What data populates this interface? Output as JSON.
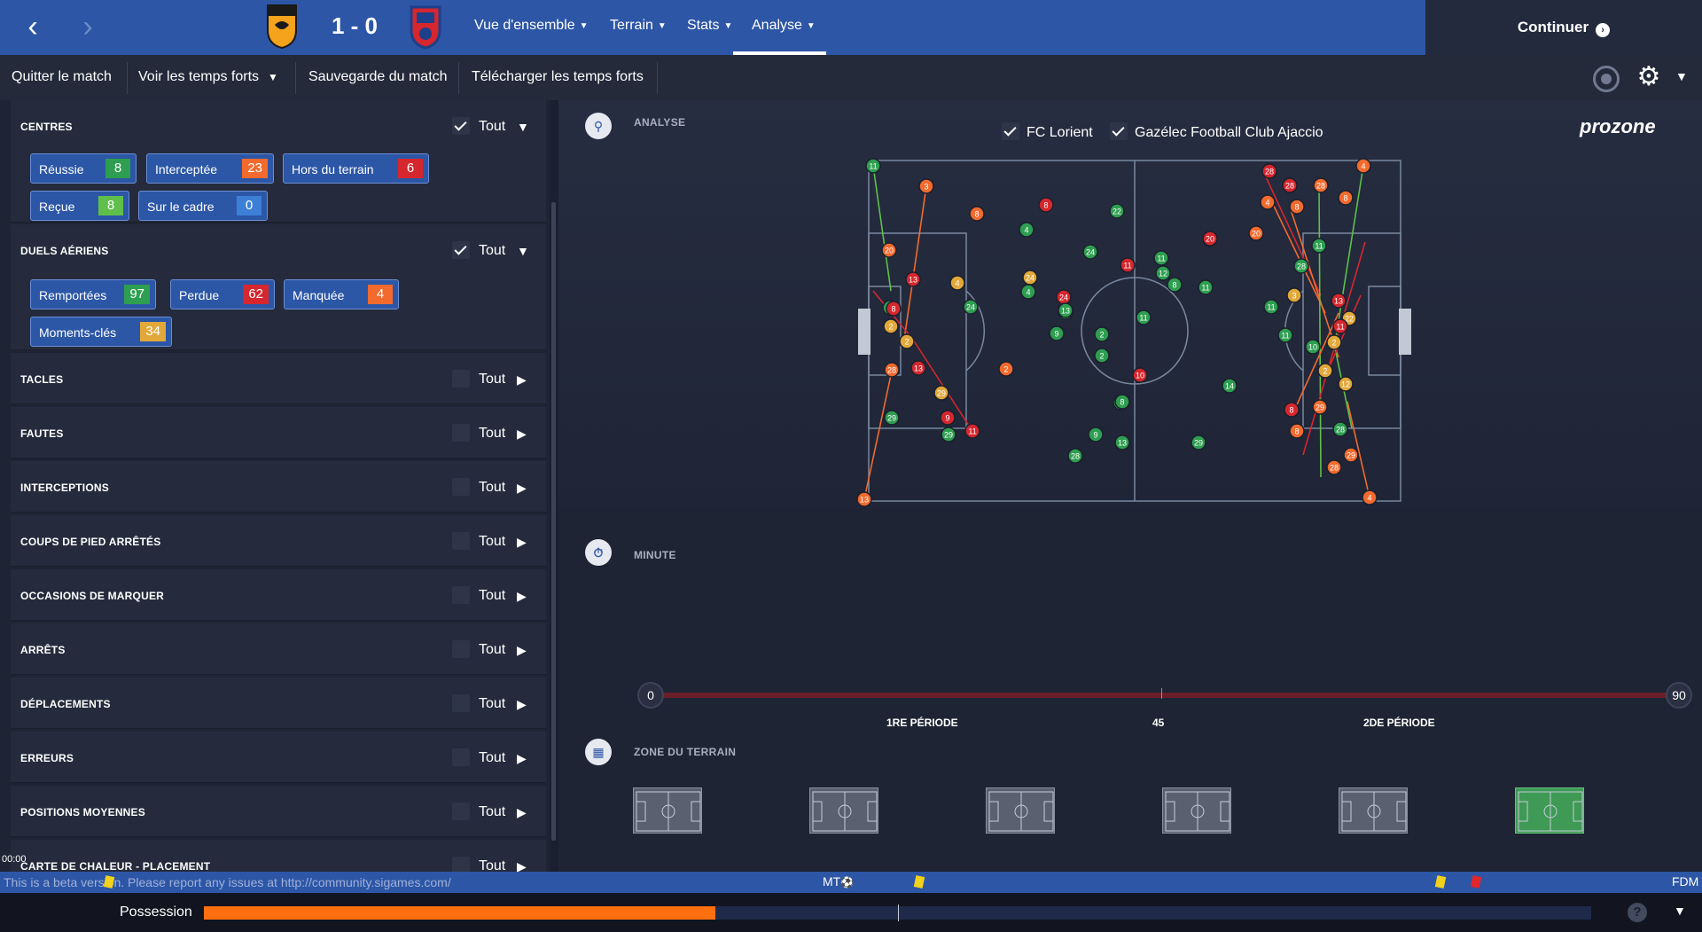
{
  "header": {
    "back_label": "‹",
    "forward_label": "›",
    "score": "1 - 0",
    "home_crest_text": "FC LORIENT",
    "away_crest_text": "GFCA",
    "tabs": [
      {
        "label": "Vue d'ensemble"
      },
      {
        "label": "Terrain"
      },
      {
        "label": "Stats"
      },
      {
        "label": "Analyse"
      }
    ],
    "continue_label": "Continuer"
  },
  "subbar": {
    "quit": "Quitter le match",
    "highlights": "Voir les temps forts",
    "save": "Sauvegarde du match",
    "download": "Télécharger les temps forts"
  },
  "colors": {
    "green": "#2e9e50",
    "orange": "#f26a2e",
    "red": "#d6262e",
    "yellow": "#e2a83a",
    "blue": "#3c7fd6"
  },
  "left_panel": {
    "all_label": "Tout",
    "centres": {
      "title": "CENTRES",
      "chips": [
        {
          "label": "Réussie",
          "value": "8",
          "color": "#2e9e50"
        },
        {
          "label": "Interceptée",
          "value": "23",
          "color": "#f26a2e"
        },
        {
          "label": "Hors du terrain",
          "value": "6",
          "color": "#d6262e"
        },
        {
          "label": "Reçue",
          "value": "8",
          "color": "#5fbf4a"
        },
        {
          "label": "Sur le cadre",
          "value": "0",
          "color": "#3c7fd6"
        }
      ]
    },
    "duels": {
      "title": "DUELS AÉRIENS",
      "chips": [
        {
          "label": "Remportées",
          "value": "97",
          "color": "#2e9e50"
        },
        {
          "label": "Perdue",
          "value": "62",
          "color": "#d6262e"
        },
        {
          "label": "Manquée",
          "value": "4",
          "color": "#f26a2e"
        },
        {
          "label": "Moments-clés",
          "value": "34",
          "color": "#e2a83a"
        }
      ]
    },
    "sections": [
      {
        "title": "TACLES"
      },
      {
        "title": "FAUTES"
      },
      {
        "title": "INTERCEPTIONS"
      },
      {
        "title": "COUPS DE PIED ARRÊTÉS"
      },
      {
        "title": "OCCASIONS DE MARQUER"
      },
      {
        "title": "ARRÊTS"
      },
      {
        "title": "DÉPLACEMENTS"
      },
      {
        "title": "ERREURS"
      },
      {
        "title": "POSITIONS MOYENNES"
      },
      {
        "title": "CARTE DE CHALEUR - PLACEMENT"
      }
    ],
    "timestamp": "00:00"
  },
  "analysis": {
    "section_label": "ANALYSE",
    "teams": [
      "FC Lorient",
      "Gazélec Football Club Ajaccio"
    ],
    "brand": "prozone",
    "markers": [
      {
        "n": "11",
        "c": "g"
      },
      {
        "n": "3",
        "c": "o"
      },
      {
        "n": "8",
        "c": "o"
      },
      {
        "n": "8",
        "c": "r"
      },
      {
        "n": "4",
        "c": "g"
      },
      {
        "n": "22",
        "c": "g"
      },
      {
        "n": "28",
        "c": "r"
      },
      {
        "n": "28",
        "c": "r"
      },
      {
        "n": "4",
        "c": "o"
      },
      {
        "n": "20",
        "c": "o"
      },
      {
        "n": "4",
        "c": "o"
      },
      {
        "n": "8",
        "c": "o"
      },
      {
        "n": "28",
        "c": "o"
      },
      {
        "n": "8",
        "c": "o"
      },
      {
        "n": "11",
        "c": "g"
      },
      {
        "n": "11",
        "c": "g"
      },
      {
        "n": "20",
        "c": "r"
      },
      {
        "n": "13",
        "c": "g"
      },
      {
        "n": "24",
        "c": "g"
      },
      {
        "n": "11",
        "c": "r"
      },
      {
        "n": "11",
        "c": "g"
      },
      {
        "n": "20",
        "c": "o"
      },
      {
        "n": "13",
        "c": "r"
      },
      {
        "n": "4",
        "c": "y"
      },
      {
        "n": "24",
        "c": "y"
      },
      {
        "n": "4",
        "c": "g"
      },
      {
        "n": "12",
        "c": "g"
      },
      {
        "n": "8",
        "c": "g"
      },
      {
        "n": "11",
        "c": "g"
      },
      {
        "n": "24",
        "c": "g"
      },
      {
        "n": "8",
        "c": "r"
      },
      {
        "n": "2",
        "c": "y"
      },
      {
        "n": "2",
        "c": "y"
      },
      {
        "n": "28",
        "c": "o"
      },
      {
        "n": "13",
        "c": "r"
      },
      {
        "n": "29",
        "c": "y"
      },
      {
        "n": "9",
        "c": "r"
      },
      {
        "n": "11",
        "c": "r"
      },
      {
        "n": "29",
        "c": "g"
      },
      {
        "n": "29",
        "c": "g"
      },
      {
        "n": "13",
        "c": "o"
      },
      {
        "n": "2",
        "c": "o"
      },
      {
        "n": "9",
        "c": "g"
      },
      {
        "n": "2",
        "c": "g"
      },
      {
        "n": "13",
        "c": "g"
      },
      {
        "n": "10",
        "c": "r"
      },
      {
        "n": "14",
        "c": "g"
      },
      {
        "n": "29",
        "c": "g"
      },
      {
        "n": "28",
        "c": "g"
      },
      {
        "n": "13",
        "c": "g"
      },
      {
        "n": "29",
        "c": "g"
      },
      {
        "n": "11",
        "c": "g"
      },
      {
        "n": "3",
        "c": "y"
      },
      {
        "n": "11",
        "c": "g"
      },
      {
        "n": "28",
        "c": "g"
      },
      {
        "n": "8",
        "c": "r"
      },
      {
        "n": "8",
        "c": "o"
      },
      {
        "n": "28",
        "c": "o"
      },
      {
        "n": "29",
        "c": "o"
      },
      {
        "n": "4",
        "c": "o"
      },
      {
        "n": "10",
        "c": "g"
      },
      {
        "n": "2",
        "c": "y"
      },
      {
        "n": "12",
        "c": "y"
      },
      {
        "n": "22",
        "c": "y"
      },
      {
        "n": "13",
        "c": "r"
      },
      {
        "n": "11",
        "c": "r"
      },
      {
        "n": "2",
        "c": "y"
      },
      {
        "n": "24",
        "c": "r"
      },
      {
        "n": "2",
        "c": "g"
      },
      {
        "n": "11",
        "c": "g"
      },
      {
        "n": "13",
        "c": "g"
      },
      {
        "n": "8",
        "c": "g"
      },
      {
        "n": "29",
        "c": "o"
      },
      {
        "n": "28",
        "c": "g"
      },
      {
        "n": "9",
        "c": "g"
      }
    ]
  },
  "timeline": {
    "label": "MINUTE",
    "start": "0",
    "end": "90",
    "mid": "45",
    "first_half": "1RE PÉRIODE",
    "second_half": "2DE PÉRIODE",
    "range_start_minute": 0,
    "range_end_minute": 90
  },
  "zones": {
    "label": "ZONE DU TERRAIN",
    "active_index": 5
  },
  "beta": {
    "text": "This is a beta version. Please report any issues at http://community.sigames.com/",
    "mt": "MT",
    "fdm": "FDM"
  },
  "possession": {
    "label": "Possession",
    "home_fraction": 0.369
  }
}
